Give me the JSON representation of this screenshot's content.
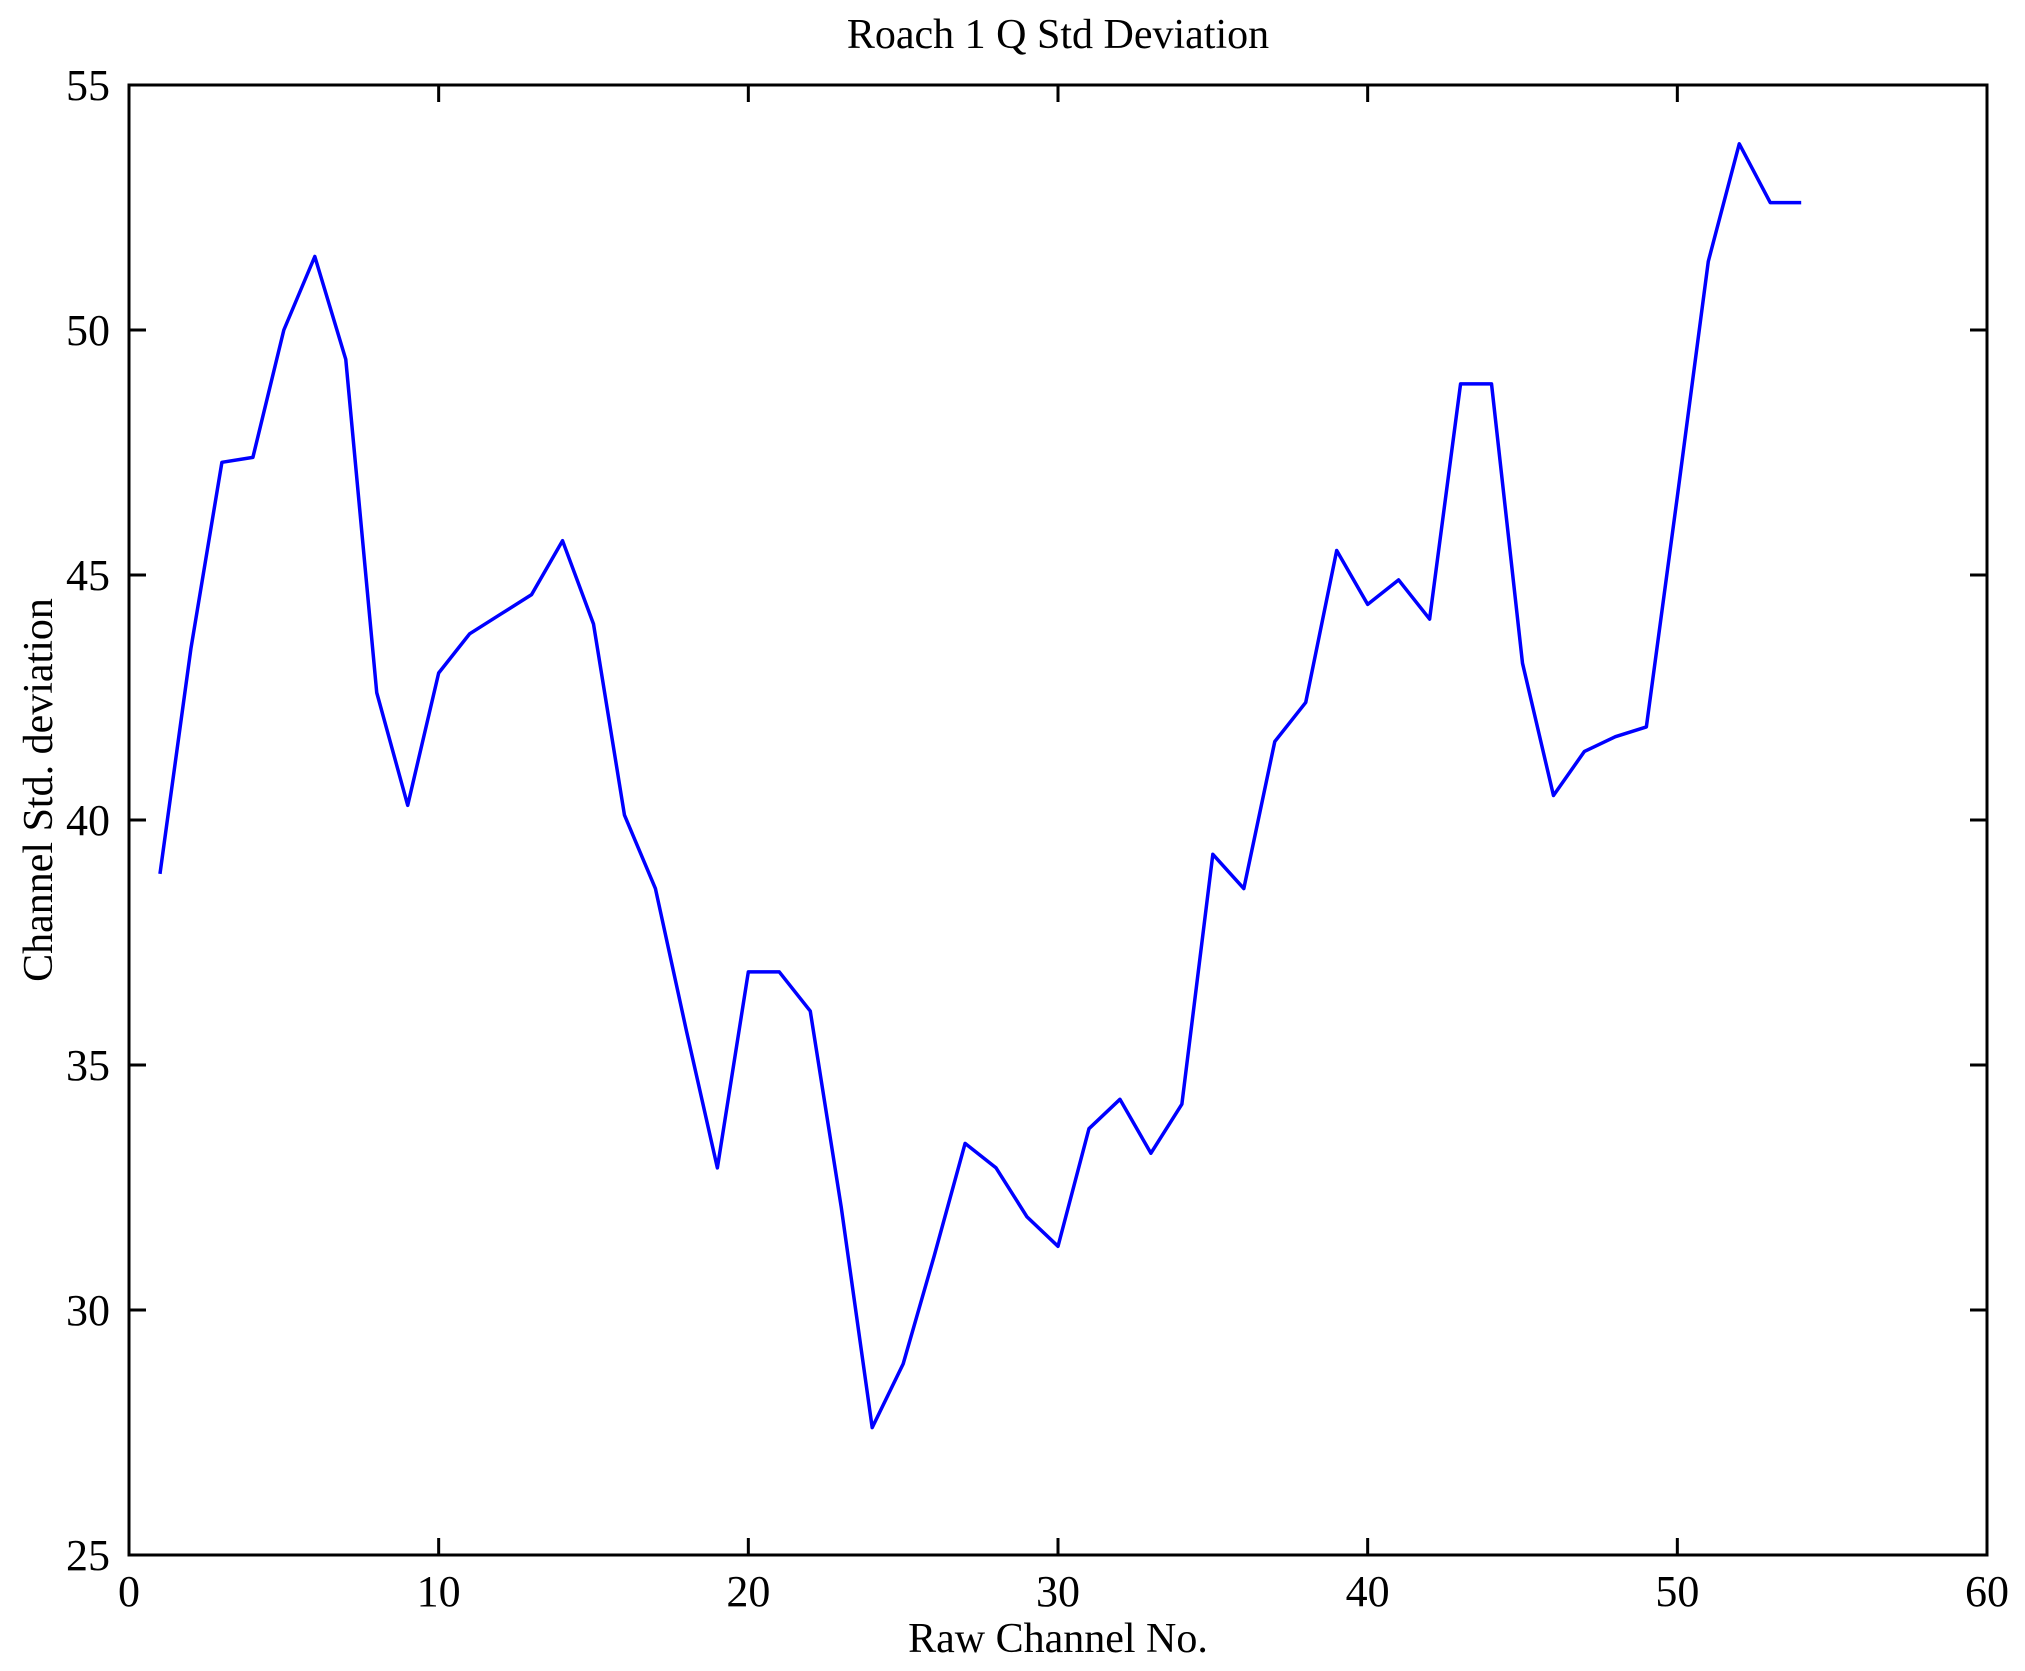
{
  "figure": {
    "background": "#ffffff",
    "axis_color": "#000000",
    "line_color": "#0000ff"
  },
  "chart_data": {
    "type": "line",
    "title": "Roach 1 Q Std Deviation",
    "xlabel": "Raw Channel No.",
    "ylabel": "Channel Std. deviation",
    "grid": false,
    "legend_position": "none",
    "xlim": [
      0,
      60
    ],
    "ylim": [
      25,
      55
    ],
    "xticks": [
      0,
      10,
      20,
      30,
      40,
      50,
      60
    ],
    "yticks": [
      25,
      30,
      35,
      40,
      45,
      50,
      55
    ],
    "series": [
      {
        "name": "Channel Std deviation",
        "color": "#0000ff",
        "x": [
          1,
          2,
          3,
          4,
          5,
          6,
          7,
          8,
          9,
          10,
          11,
          12,
          13,
          14,
          15,
          16,
          17,
          18,
          19,
          20,
          21,
          22,
          23,
          24,
          25,
          26,
          27,
          28,
          29,
          30,
          31,
          32,
          33,
          34,
          35,
          36,
          37,
          38,
          39,
          40,
          41,
          42,
          43,
          44,
          45,
          46,
          47,
          48,
          49,
          50,
          51,
          52,
          53,
          54
        ],
        "y": [
          38.9,
          43.5,
          47.3,
          47.4,
          50.0,
          51.5,
          49.4,
          42.6,
          40.3,
          43.0,
          43.8,
          44.2,
          44.6,
          45.7,
          44.0,
          40.1,
          38.6,
          35.7,
          32.9,
          36.9,
          36.9,
          36.1,
          32.1,
          27.6,
          28.9,
          31.1,
          33.4,
          32.9,
          31.9,
          31.3,
          33.7,
          34.3,
          33.2,
          34.2,
          39.3,
          38.6,
          41.6,
          42.4,
          45.5,
          44.4,
          44.9,
          44.1,
          48.9,
          48.9,
          43.2,
          40.5,
          41.4,
          41.7,
          41.9,
          46.6,
          51.4,
          53.8,
          52.6,
          52.6
        ]
      }
    ]
  }
}
